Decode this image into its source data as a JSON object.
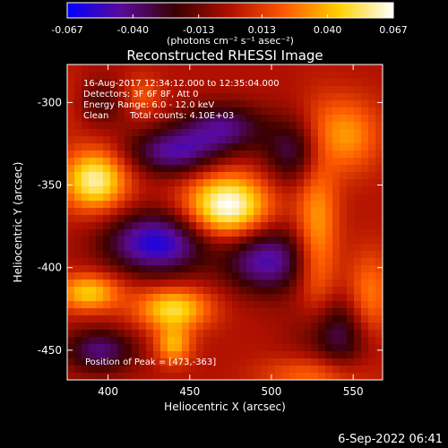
{
  "colorbar": {
    "tick_labels": [
      "-0.067",
      "-0.040",
      "-0.013",
      "0.013",
      "0.040",
      "0.067"
    ],
    "tick_values": [
      -0.067,
      -0.04,
      -0.013,
      0.013,
      0.04,
      0.067
    ],
    "range": [
      -0.067,
      0.067
    ],
    "colors": [
      "#0000ff",
      "#5a0a9a",
      "#3a0000",
      "#b01000",
      "#ff5a00",
      "#ffd000",
      "#ffffff"
    ]
  },
  "chart_data": {
    "type": "heatmap",
    "title": "Reconstructed RHESSI Image",
    "units_label": "(photons cm⁻² s⁻¹ asec⁻²)",
    "xlabel": "Heliocentric X (arcsec)",
    "ylabel": "Heliocentric Y (arcsec)",
    "xlim": [
      375,
      568
    ],
    "ylim": [
      -468,
      -277
    ],
    "x_tick_labels": [
      "400",
      "450",
      "500",
      "550"
    ],
    "x_ticks": [
      400,
      450,
      500,
      550
    ],
    "y_tick_labels": [
      "-300",
      "-350",
      "-400",
      "-450"
    ],
    "y_ticks": [
      -300,
      -350,
      -400,
      -450
    ],
    "peak": {
      "x": 473,
      "y": -363
    },
    "blobs": [
      {
        "x": 473,
        "y": -363,
        "sx": 18,
        "sy": 14,
        "amp": 0.07
      },
      {
        "x": 392,
        "y": -347,
        "sx": 14,
        "sy": 13,
        "amp": 0.06
      },
      {
        "x": 388,
        "y": -415,
        "sx": 14,
        "sy": 8,
        "amp": 0.045
      },
      {
        "x": 440,
        "y": -425,
        "sx": 16,
        "sy": 9,
        "amp": 0.05
      },
      {
        "x": 440,
        "y": -447,
        "sx": 8,
        "sy": 8,
        "amp": 0.038
      },
      {
        "x": 528,
        "y": -380,
        "sx": 9,
        "sy": 40,
        "amp": 0.036
      },
      {
        "x": 545,
        "y": -320,
        "sx": 15,
        "sy": 16,
        "amp": 0.035
      },
      {
        "x": 560,
        "y": -420,
        "sx": 10,
        "sy": 20,
        "amp": 0.032
      },
      {
        "x": 420,
        "y": -297,
        "sx": 9,
        "sy": 9,
        "amp": 0.025
      },
      {
        "x": 525,
        "y": -465,
        "sx": 22,
        "sy": 8,
        "amp": 0.025
      },
      {
        "x": 378,
        "y": -300,
        "sx": 7,
        "sy": 12,
        "amp": 0.015
      },
      {
        "x": 430,
        "y": -385,
        "sx": 22,
        "sy": 13,
        "amp": -0.06
      },
      {
        "x": 497,
        "y": -395,
        "sx": 18,
        "sy": 14,
        "amp": -0.05
      },
      {
        "x": 440,
        "y": -330,
        "sx": 20,
        "sy": 10,
        "amp": -0.045
      },
      {
        "x": 470,
        "y": -315,
        "sx": 18,
        "sy": 10,
        "amp": -0.04
      },
      {
        "x": 515,
        "y": -330,
        "sx": 14,
        "sy": 14,
        "amp": -0.035
      },
      {
        "x": 540,
        "y": -440,
        "sx": 16,
        "sy": 16,
        "amp": -0.038
      },
      {
        "x": 395,
        "y": -450,
        "sx": 15,
        "sy": 9,
        "amp": -0.04
      },
      {
        "x": 395,
        "y": -300,
        "sx": 18,
        "sy": 10,
        "amp": -0.02
      }
    ]
  },
  "annotations": {
    "time_range": "16-Aug-2017 12:34:12.000 to 12:35:04.000",
    "detectors": "Detectors: 3F 6F 8F, Att 0",
    "energy": "Energy Range: 6.0 - 12.0 keV",
    "method": "Clean",
    "counts": "Total counts: 4.10E+03",
    "peak_label": "Position of Peak = [473,-363]"
  },
  "footer": {
    "date": "6-Sep-2022 06:41"
  }
}
